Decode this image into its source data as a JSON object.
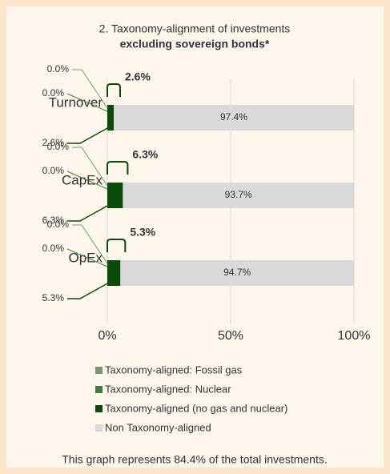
{
  "chart_data": {
    "type": "stacked_bar_horizontal",
    "title": "2. Taxonomy-alignment of investments",
    "subtitle": "excluding sovereign bonds*",
    "categories": [
      "Turnover",
      "CapEx",
      "OpEx"
    ],
    "series": [
      {
        "name": "Taxonomy-aligned: Fossil gas",
        "color": "#6f9a6f",
        "values": [
          0,
          0,
          0
        ],
        "value_labels": [
          "0.0%",
          "0.0%",
          "0.0%"
        ]
      },
      {
        "name": "Taxonomy-aligned: Nuclear",
        "color": "#3f7a3f",
        "values": [
          0,
          0,
          0
        ],
        "value_labels": [
          "0.0%",
          "0.0%",
          "0.0%"
        ]
      },
      {
        "name": "Taxonomy-aligned (no gas and nuclear)",
        "color": "#0b4a0b",
        "values": [
          2.6,
          6.3,
          5.3
        ],
        "value_labels": [
          "2.6%",
          "6.3%",
          "5.3%"
        ]
      },
      {
        "name": "Non Taxonomy-aligned",
        "color": "#d9d9d9",
        "values": [
          97.4,
          93.7,
          94.7
        ],
        "value_labels": [
          "97.4%",
          "93.7%",
          "94.7%"
        ]
      }
    ],
    "aligned_totals": [
      2.6,
      6.3,
      5.3
    ],
    "aligned_total_labels": [
      "2.6%",
      "6.3%",
      "5.3%"
    ],
    "xlim": [
      0,
      100
    ],
    "xticks": [
      {
        "value": 0,
        "label": "0%"
      },
      {
        "value": 50,
        "label": "50%"
      },
      {
        "value": 100,
        "label": "100%"
      }
    ],
    "grid": true,
    "note": "This graph represents 84.4% of the total investments."
  }
}
